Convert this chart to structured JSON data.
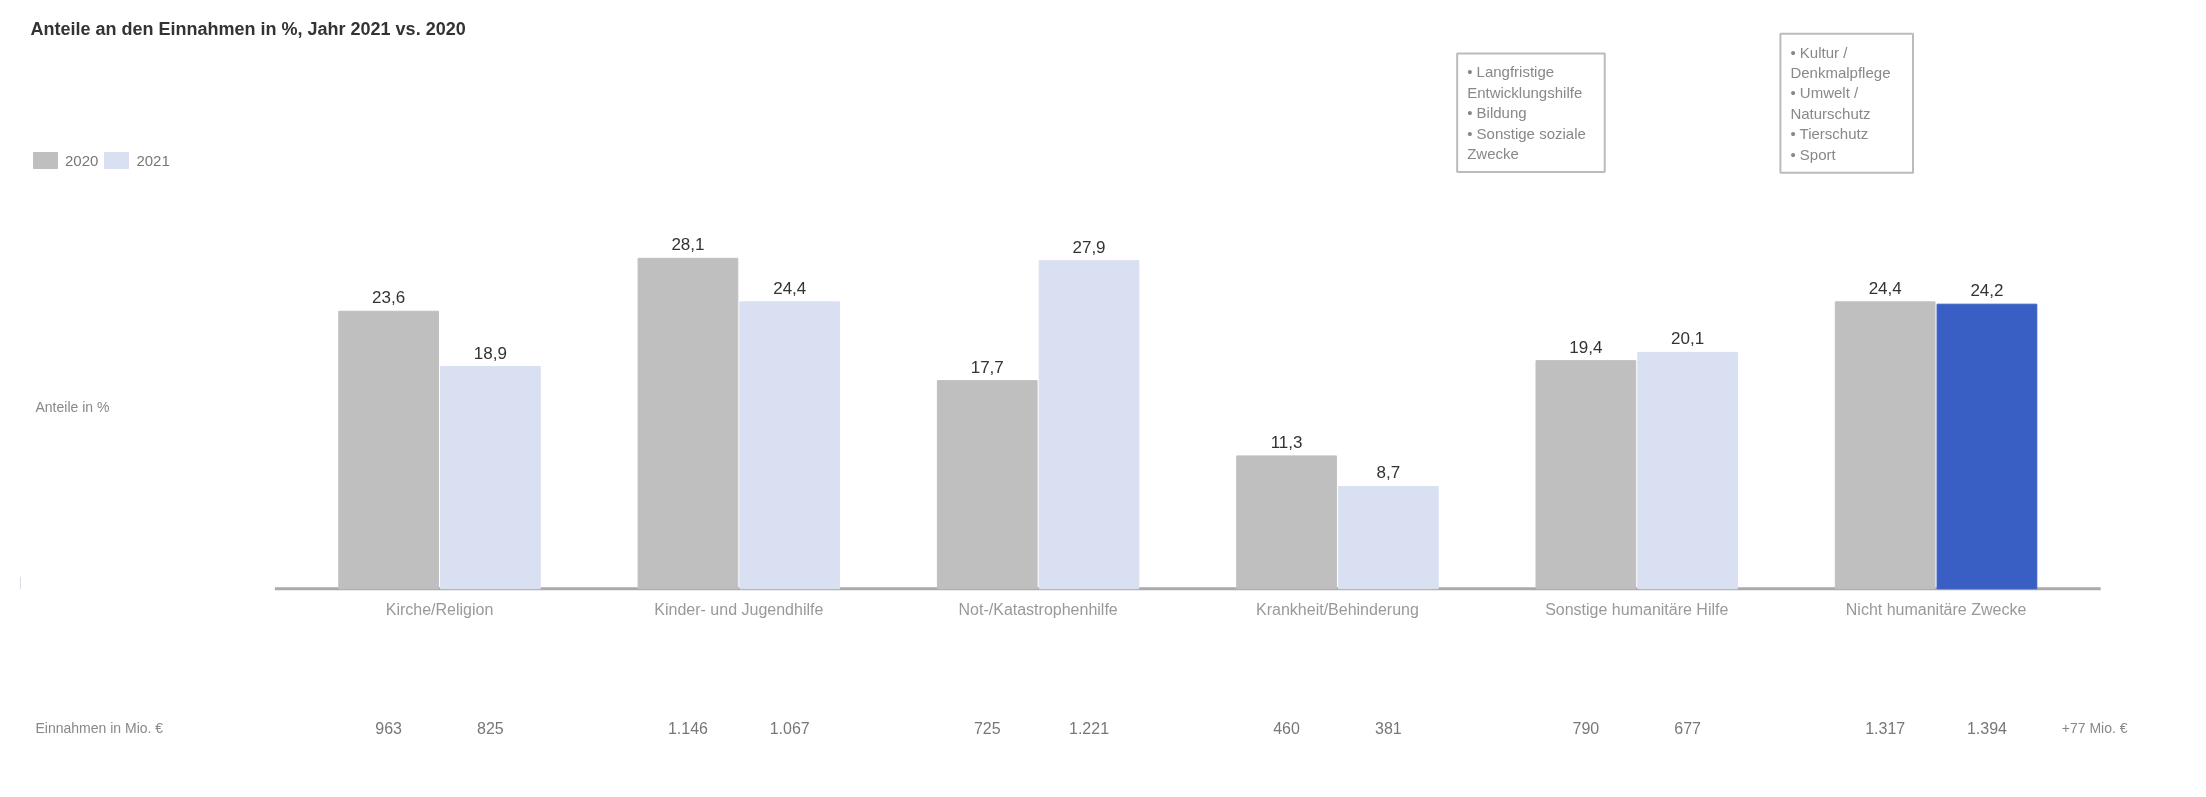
{
  "chart_data": {
    "type": "bar",
    "title": "Anteile an den Einnahmen in %, Jahr 2021 vs. 2020",
    "categories": [
      "Kirche/Religion",
      "Kinder- und Jugendhilfe",
      "Not-/Katastrophenhilfe",
      "Krankheit/Behinderung",
      "Sonstige humanitäre Hilfe",
      "Nicht humanitäre Zwecke"
    ],
    "series": [
      {
        "name": "2020",
        "color": "#bfbfbf",
        "values": [
          23.6,
          28.1,
          17.7,
          11.3,
          19.4,
          24.4
        ],
        "value_labels": [
          "23,6",
          "28,1",
          "17,7",
          "11,3",
          "19,4",
          "24,4"
        ]
      },
      {
        "name": "2021",
        "color": "#d9e0f2",
        "colors": [
          "#d9e0f2",
          "#d9e0f2",
          "#d9e0f2",
          "#d9e0f2",
          "#d9e0f2",
          "#3a5fc4"
        ],
        "values": [
          18.9,
          24.4,
          27.9,
          8.7,
          20.1,
          24.2
        ],
        "value_labels": [
          "18,9",
          "24,4",
          "27,9",
          "8,7",
          "20,1",
          "24,2"
        ]
      }
    ],
    "legend": "top left",
    "annotations": [
      "Anteile in %",
      "Einnahmen in Mio. €",
      "• Langfristige\n   Entwicklungshilfe\n• Bildung\n• Sonstige soziale\n   Zwecke",
      "• Kultur /\n   Denkmalpflege\n• Umwelt /\n   Naturschutz\n• Tierschutz\n• Sport",
      "+77 Mio. €",
      "963",
      "825",
      "1.146",
      "1.067",
      "725",
      "1.221",
      "460",
      "381",
      "790",
      "677",
      "1.317",
      "1.394"
    ]
  }
}
